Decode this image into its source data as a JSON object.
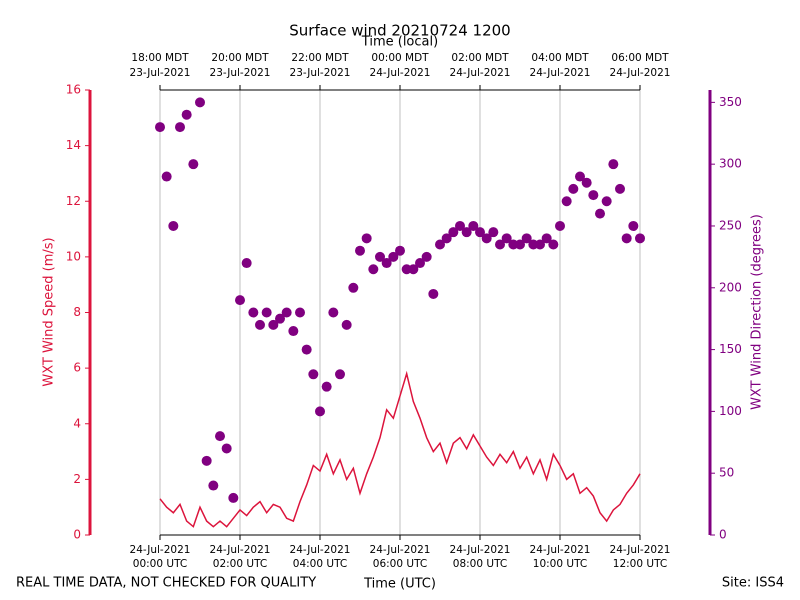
{
  "chart_data": {
    "type": "line",
    "title": "Surface wind 20210724 1200",
    "xlabel": "Time (UTC)",
    "x2label": "Time (local)",
    "ylabel": "WXT Wind Speed (m/s)",
    "y2label": "WXT Wind Direction (degrees)",
    "footer_left": "REAL TIME DATA, NOT CHECKED FOR QUALITY",
    "footer_right": "Site: ISS4",
    "x": [
      "2021-07-24T00:00",
      "2021-07-24T00:10",
      "2021-07-24T00:20",
      "2021-07-24T00:30",
      "2021-07-24T00:40",
      "2021-07-24T00:50",
      "2021-07-24T01:00",
      "2021-07-24T01:10",
      "2021-07-24T01:20",
      "2021-07-24T01:30",
      "2021-07-24T01:40",
      "2021-07-24T01:50",
      "2021-07-24T02:00",
      "2021-07-24T02:10",
      "2021-07-24T02:20",
      "2021-07-24T02:30",
      "2021-07-24T02:40",
      "2021-07-24T02:50",
      "2021-07-24T03:00",
      "2021-07-24T03:10",
      "2021-07-24T03:20",
      "2021-07-24T03:30",
      "2021-07-24T03:40",
      "2021-07-24T03:50",
      "2021-07-24T04:00",
      "2021-07-24T04:10",
      "2021-07-24T04:20",
      "2021-07-24T04:30",
      "2021-07-24T04:40",
      "2021-07-24T04:50",
      "2021-07-24T05:00",
      "2021-07-24T05:10",
      "2021-07-24T05:20",
      "2021-07-24T05:30",
      "2021-07-24T05:40",
      "2021-07-24T05:50",
      "2021-07-24T06:00",
      "2021-07-24T06:10",
      "2021-07-24T06:20",
      "2021-07-24T06:30",
      "2021-07-24T06:40",
      "2021-07-24T06:50",
      "2021-07-24T07:00",
      "2021-07-24T07:10",
      "2021-07-24T07:20",
      "2021-07-24T07:30",
      "2021-07-24T07:40",
      "2021-07-24T07:50",
      "2021-07-24T08:00",
      "2021-07-24T08:10",
      "2021-07-24T08:20",
      "2021-07-24T08:30",
      "2021-07-24T08:40",
      "2021-07-24T08:50",
      "2021-07-24T09:00",
      "2021-07-24T09:10",
      "2021-07-24T09:20",
      "2021-07-24T09:30",
      "2021-07-24T09:40",
      "2021-07-24T09:50",
      "2021-07-24T10:00",
      "2021-07-24T10:10",
      "2021-07-24T10:20",
      "2021-07-24T10:30",
      "2021-07-24T10:40",
      "2021-07-24T10:50",
      "2021-07-24T11:00",
      "2021-07-24T11:10",
      "2021-07-24T11:20",
      "2021-07-24T11:30",
      "2021-07-24T11:40",
      "2021-07-24T11:50",
      "2021-07-24T12:00"
    ],
    "series": [
      {
        "name": "WXT Wind Speed",
        "type": "line",
        "color": "#dc143c",
        "values": [
          1.3,
          1.0,
          0.8,
          1.1,
          0.5,
          0.3,
          1.0,
          0.5,
          0.3,
          0.5,
          0.3,
          0.6,
          0.9,
          0.7,
          1.0,
          1.2,
          0.8,
          1.1,
          1.0,
          0.6,
          0.5,
          1.2,
          1.8,
          2.5,
          2.3,
          2.9,
          2.2,
          2.7,
          2.0,
          2.4,
          1.5,
          2.2,
          2.8,
          3.5,
          4.5,
          4.2,
          5.0,
          5.8,
          4.8,
          4.2,
          3.5,
          3.0,
          3.3,
          2.6,
          3.3,
          3.5,
          3.1,
          3.6,
          3.2,
          2.8,
          2.5,
          2.9,
          2.6,
          3.0,
          2.4,
          2.8,
          2.2,
          2.7,
          2.0,
          2.9,
          2.5,
          2.0,
          2.2,
          1.5,
          1.7,
          1.4,
          0.8,
          0.5,
          0.9,
          1.1,
          1.5,
          1.8,
          2.2
        ]
      },
      {
        "name": "WXT Wind Direction",
        "type": "scatter",
        "color": "#800080",
        "axis": "y2",
        "values": [
          330,
          290,
          250,
          330,
          340,
          300,
          350,
          60,
          40,
          80,
          70,
          30,
          190,
          220,
          180,
          170,
          180,
          170,
          175,
          180,
          165,
          180,
          150,
          130,
          100,
          120,
          180,
          130,
          170,
          200,
          230,
          240,
          215,
          225,
          220,
          225,
          230,
          215,
          215,
          220,
          225,
          195,
          235,
          240,
          245,
          250,
          245,
          250,
          245,
          240,
          245,
          235,
          240,
          235,
          235,
          240,
          235,
          235,
          240,
          235,
          250,
          270,
          280,
          290,
          285,
          275,
          260,
          270,
          300,
          280,
          240,
          250,
          240
        ]
      }
    ],
    "xlim": [
      "2021-07-24T00:00",
      "2021-07-24T12:00"
    ],
    "xticks": [
      {
        "value": "2021-07-24T00:00",
        "label": [
          "24-Jul-2021",
          "00:00 UTC"
        ]
      },
      {
        "value": "2021-07-24T02:00",
        "label": [
          "24-Jul-2021",
          "02:00 UTC"
        ]
      },
      {
        "value": "2021-07-24T04:00",
        "label": [
          "24-Jul-2021",
          "04:00 UTC"
        ]
      },
      {
        "value": "2021-07-24T06:00",
        "label": [
          "24-Jul-2021",
          "06:00 UTC"
        ]
      },
      {
        "value": "2021-07-24T08:00",
        "label": [
          "24-Jul-2021",
          "08:00 UTC"
        ]
      },
      {
        "value": "2021-07-24T10:00",
        "label": [
          "24-Jul-2021",
          "10:00 UTC"
        ]
      },
      {
        "value": "2021-07-24T12:00",
        "label": [
          "24-Jul-2021",
          "12:00 UTC"
        ]
      }
    ],
    "x2ticks": [
      {
        "value": "2021-07-24T00:00",
        "label": [
          "18:00 MDT",
          "23-Jul-2021"
        ]
      },
      {
        "value": "2021-07-24T02:00",
        "label": [
          "20:00 MDT",
          "23-Jul-2021"
        ]
      },
      {
        "value": "2021-07-24T04:00",
        "label": [
          "22:00 MDT",
          "23-Jul-2021"
        ]
      },
      {
        "value": "2021-07-24T06:00",
        "label": [
          "00:00 MDT",
          "24-Jul-2021"
        ]
      },
      {
        "value": "2021-07-24T08:00",
        "label": [
          "02:00 MDT",
          "24-Jul-2021"
        ]
      },
      {
        "value": "2021-07-24T10:00",
        "label": [
          "04:00 MDT",
          "24-Jul-2021"
        ]
      },
      {
        "value": "2021-07-24T12:00",
        "label": [
          "06:00 MDT",
          "24-Jul-2021"
        ]
      }
    ],
    "ylim": [
      0,
      16
    ],
    "yticks": [
      0,
      2,
      4,
      6,
      8,
      10,
      12,
      14,
      16
    ],
    "y2lim": [
      0,
      360
    ],
    "y2ticks": [
      0,
      50,
      100,
      150,
      200,
      250,
      300,
      350
    ],
    "grid": true
  }
}
